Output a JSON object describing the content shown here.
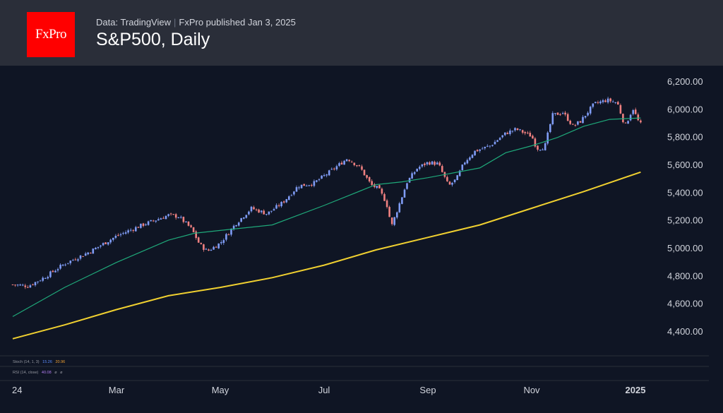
{
  "header": {
    "logo_text": "FxPro",
    "source": "Data: TradingView",
    "publisher": "FxPro published Jan 3, 2025",
    "title": "S&P500, Daily"
  },
  "colors": {
    "up": "#7f9cf5",
    "down": "#ef8080",
    "ma_fast": "#1fa97a",
    "ma_slow": "#f0d030",
    "background": "#0f1524",
    "header": "#2a2e39"
  },
  "indicators": {
    "stoch": {
      "label": "Stoch (14, 1, 3)",
      "v1": "15.26",
      "v2": "20.96"
    },
    "rsi": {
      "label": "RSI (14, close)",
      "v1": "40.08",
      "v2": "ø",
      "v3": "ø"
    }
  },
  "chart_data": {
    "type": "line",
    "ylim": [
      4300,
      6250
    ],
    "y_ticks": [
      "6,200.00",
      "6,000.00",
      "5,800.00",
      "5,600.00",
      "5,400.00",
      "5,200.00",
      "5,000.00",
      "4,800.00",
      "4,600.00",
      "4,400.00"
    ],
    "y_tick_values": [
      6200,
      6000,
      5800,
      5600,
      5400,
      5200,
      5000,
      4800,
      4600,
      4400
    ],
    "x_ticks": [
      "24",
      "Mar",
      "May",
      "Jul",
      "Sep",
      "Nov",
      "2025"
    ],
    "x_tick_months": [
      0,
      2,
      4,
      6,
      8,
      10,
      12
    ],
    "xlim_months": [
      0,
      12.1
    ],
    "price_anchors": [
      {
        "m": 0.0,
        "p": 4740
      },
      {
        "m": 0.3,
        "p": 4730
      },
      {
        "m": 0.6,
        "p": 4790
      },
      {
        "m": 1.0,
        "p": 4890
      },
      {
        "m": 1.5,
        "p": 4980
      },
      {
        "m": 2.0,
        "p": 5090
      },
      {
        "m": 2.5,
        "p": 5170
      },
      {
        "m": 3.0,
        "p": 5240
      },
      {
        "m": 3.2,
        "p": 5230
      },
      {
        "m": 3.45,
        "p": 5140
      },
      {
        "m": 3.6,
        "p": 5030
      },
      {
        "m": 3.75,
        "p": 4980
      },
      {
        "m": 4.0,
        "p": 5040
      },
      {
        "m": 4.3,
        "p": 5180
      },
      {
        "m": 4.6,
        "p": 5290
      },
      {
        "m": 4.9,
        "p": 5250
      },
      {
        "m": 5.2,
        "p": 5330
      },
      {
        "m": 5.5,
        "p": 5450
      },
      {
        "m": 5.8,
        "p": 5470
      },
      {
        "m": 6.1,
        "p": 5550
      },
      {
        "m": 6.45,
        "p": 5650
      },
      {
        "m": 6.7,
        "p": 5580
      },
      {
        "m": 6.9,
        "p": 5460
      },
      {
        "m": 7.05,
        "p": 5430
      },
      {
        "m": 7.2,
        "p": 5330
      },
      {
        "m": 7.3,
        "p": 5160
      },
      {
        "m": 7.45,
        "p": 5320
      },
      {
        "m": 7.6,
        "p": 5480
      },
      {
        "m": 7.8,
        "p": 5580
      },
      {
        "m": 8.0,
        "p": 5620
      },
      {
        "m": 8.2,
        "p": 5610
      },
      {
        "m": 8.4,
        "p": 5450
      },
      {
        "m": 8.55,
        "p": 5500
      },
      {
        "m": 8.7,
        "p": 5620
      },
      {
        "m": 8.9,
        "p": 5700
      },
      {
        "m": 9.2,
        "p": 5740
      },
      {
        "m": 9.5,
        "p": 5830
      },
      {
        "m": 9.7,
        "p": 5860
      },
      {
        "m": 10.0,
        "p": 5810
      },
      {
        "m": 10.1,
        "p": 5720
      },
      {
        "m": 10.25,
        "p": 5730
      },
      {
        "m": 10.4,
        "p": 5960
      },
      {
        "m": 10.6,
        "p": 5980
      },
      {
        "m": 10.8,
        "p": 5880
      },
      {
        "m": 10.95,
        "p": 5920
      },
      {
        "m": 11.2,
        "p": 6040
      },
      {
        "m": 11.45,
        "p": 6070
      },
      {
        "m": 11.65,
        "p": 6050
      },
      {
        "m": 11.8,
        "p": 5880
      },
      {
        "m": 11.95,
        "p": 6010
      },
      {
        "m": 12.05,
        "p": 5920
      },
      {
        "m": 12.15,
        "p": 5870
      }
    ],
    "series": [
      {
        "x": [
          0.0,
          1.0,
          2.0,
          3.0,
          3.5,
          4.0,
          5.0,
          6.0,
          7.0,
          7.5,
          8.0,
          9.0,
          9.5,
          10.0,
          10.5,
          11.0,
          11.5,
          12.1
        ],
        "values": [
          4510,
          4720,
          4900,
          5060,
          5110,
          5130,
          5170,
          5310,
          5460,
          5480,
          5510,
          5580,
          5690,
          5740,
          5800,
          5880,
          5930,
          5940
        ]
      },
      {
        "x": [
          0.0,
          1.0,
          2.0,
          3.0,
          4.0,
          5.0,
          6.0,
          7.0,
          8.0,
          9.0,
          10.0,
          11.0,
          12.1
        ],
        "values": [
          4350,
          4450,
          4560,
          4660,
          4720,
          4790,
          4880,
          4990,
          5080,
          5170,
          5290,
          5410,
          5550
        ]
      }
    ]
  }
}
